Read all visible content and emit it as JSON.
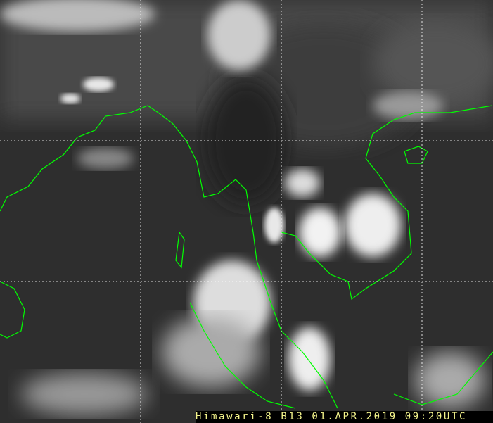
{
  "caption": "Himawari-8 B13 01.APR.2019 09:20UTC",
  "colors": {
    "coastline": "#00ff00",
    "grid": "#ffffff",
    "caption_text": "#f4f48c",
    "caption_bg": "#000000"
  },
  "image_type": "infrared satellite image with coastline and lat/lon grid overlay"
}
